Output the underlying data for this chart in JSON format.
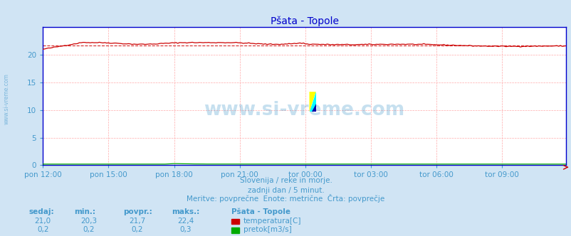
{
  "title": "Pšata - Topole",
  "bg_color": "#d0e4f4",
  "plot_bg_color": "#ffffff",
  "grid_color": "#ffaaaa",
  "x_labels": [
    "pon 12:00",
    "pon 15:00",
    "pon 18:00",
    "pon 21:00",
    "tor 00:00",
    "tor 03:00",
    "tor 06:00",
    "tor 09:00"
  ],
  "x_ticks": [
    0,
    36,
    72,
    108,
    144,
    180,
    216,
    252
  ],
  "n_points": 288,
  "temp_min": 20.3,
  "temp_avg": 21.7,
  "temp_max": 22.4,
  "temp_now": 21.0,
  "flow_min": 0.2,
  "flow_avg": 0.2,
  "flow_max": 0.3,
  "flow_now": 0.2,
  "ylim": [
    0,
    25
  ],
  "yticks": [
    0,
    5,
    10,
    15,
    20
  ],
  "temp_color": "#cc0000",
  "flow_color": "#00aa00",
  "title_color": "#0000cc",
  "label_color": "#4499cc",
  "axes_color": "#0000cc",
  "tick_color": "#4499cc",
  "watermark": "www.si-vreme.com",
  "watermark_color": "#4499cc",
  "left_label": "www.si-vreme.com",
  "subtitle1": "Slovenija / reke in morje.",
  "subtitle2": "zadnji dan / 5 minut.",
  "subtitle3": "Meritve: povrpečne  Enote: metrične  Črta: povrpečje",
  "footer_headers": [
    "sedaj:",
    "min.:",
    "povpr.:",
    "maks.:"
  ],
  "footer_row1": [
    "21,0",
    "20,3",
    "21,7",
    "22,4"
  ],
  "footer_row2": [
    "0,2",
    "0,2",
    "0,2",
    "0,3"
  ],
  "footer_station": "Pšata - Topole",
  "footer_legend1": "temperatura[C]",
  "footer_legend2": "pretok[m3/s]",
  "subtitle3_text": "Meritve: povprečne  Enote: metrične  Črta: povprečje"
}
